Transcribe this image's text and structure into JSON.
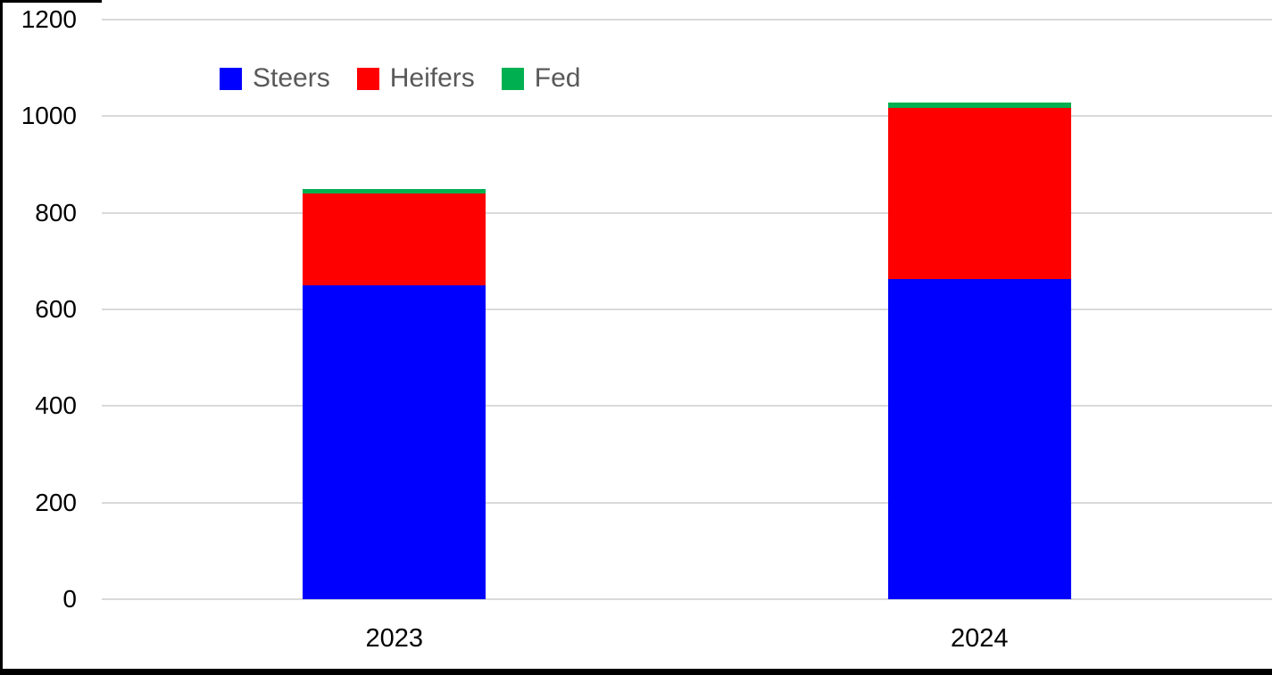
{
  "chart_data": {
    "type": "bar",
    "stacked": true,
    "title": "",
    "xlabel": "",
    "ylabel": "",
    "categories": [
      "2023",
      "2024"
    ],
    "series": [
      {
        "name": "Steers",
        "color": "#0000FF",
        "values": [
          650,
          663
        ]
      },
      {
        "name": "Heifers",
        "color": "#FF0000",
        "values": [
          190,
          355
        ]
      },
      {
        "name": "Fed",
        "color": "#00B050",
        "values": [
          10,
          10
        ]
      }
    ],
    "totals": [
      850,
      1028
    ],
    "ylim": [
      0,
      1200
    ],
    "yticks": [
      0,
      200,
      400,
      600,
      800,
      1000,
      1200
    ],
    "grid": true,
    "legend_position": "top-left-inside"
  },
  "colors": {
    "gridline": "#D9D9D9",
    "legend_text": "#595959",
    "axis_text": "#000000",
    "background": "#FFFFFF",
    "frame_border": "#000000"
  }
}
